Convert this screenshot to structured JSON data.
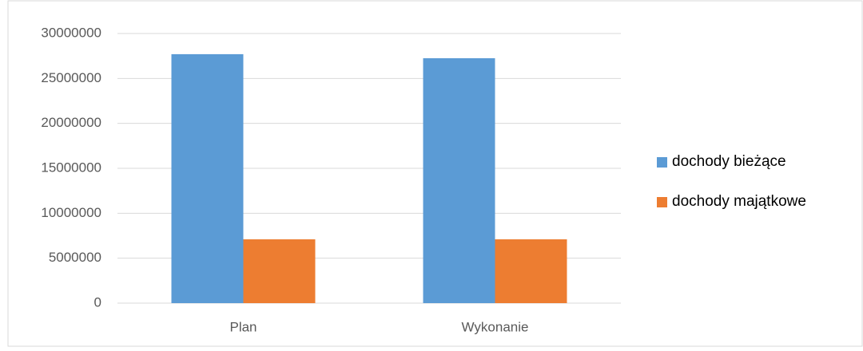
{
  "chart_data": {
    "type": "bar",
    "categories": [
      "Plan",
      "Wykonanie"
    ],
    "series": [
      {
        "name": "dochody bieżące",
        "color": "#5b9bd5",
        "values": [
          27700000,
          27250000
        ]
      },
      {
        "name": "dochody majątkowe",
        "color": "#ed7d31",
        "values": [
          7100000,
          7100000
        ]
      }
    ],
    "ylim": [
      0,
      30000000
    ],
    "yticks": [
      0,
      5000000,
      10000000,
      15000000,
      20000000,
      25000000,
      30000000
    ],
    "grid": true,
    "legend": "right"
  }
}
